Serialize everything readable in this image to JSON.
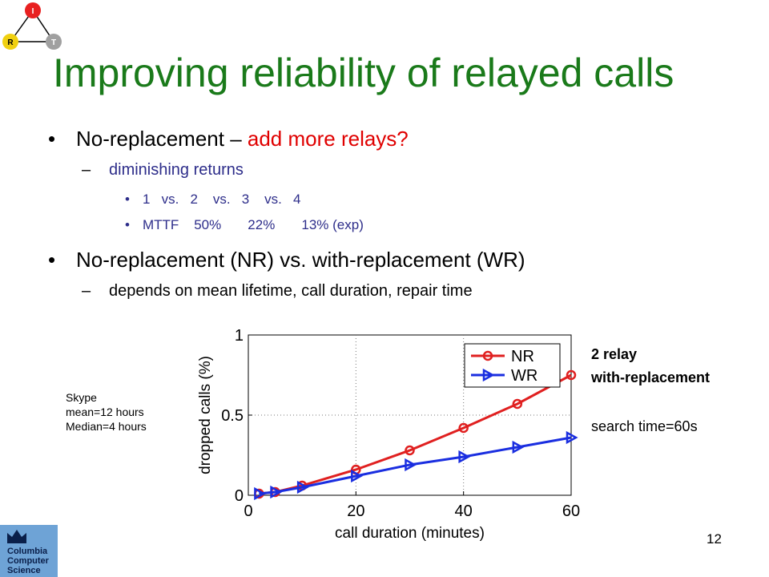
{
  "logo": {
    "letters": [
      "I",
      "R",
      "T"
    ],
    "colors": [
      "#e82020",
      "#f0d010",
      "#a0a0a0"
    ]
  },
  "title": "Improving reliability of relayed calls",
  "bullets": {
    "b1": {
      "prefix": "No-replacement – ",
      "highlight": "add more relays?"
    },
    "b1_sub": "diminishing returns",
    "b1_subsub": [
      "1   vs.   2    vs.   3    vs.   4",
      "MTTF    50%       22%       13% (exp)"
    ],
    "b2": "No-replacement (NR) vs. with-replacement (WR)",
    "b2_sub": "depends on mean lifetime, call duration, repair time"
  },
  "skype_note": [
    "Skype",
    "mean=12 hours",
    "Median=4 hours"
  ],
  "side_note": {
    "line1": "2 relay",
    "line2": "with-replacement",
    "line3": "search time=60s"
  },
  "page_number": "12",
  "cu_logo": [
    "Columbia",
    "Computer",
    "Science"
  ],
  "chart_data": {
    "type": "line",
    "xlabel": "call duration (minutes)",
    "ylabel": "dropped calls (%)",
    "xlim": [
      0,
      60
    ],
    "ylim": [
      0,
      1
    ],
    "xticks": [
      0,
      20,
      40,
      60
    ],
    "yticks": [
      0,
      0.5,
      1
    ],
    "ytick_labels": [
      "0",
      "0.5",
      "1"
    ],
    "grid": true,
    "legend_position": "top-right",
    "series": [
      {
        "name": "NR",
        "color": "#e02020",
        "marker": "circle",
        "x": [
          2,
          5,
          10,
          20,
          30,
          40,
          50,
          60
        ],
        "y": [
          0.01,
          0.02,
          0.06,
          0.16,
          0.28,
          0.42,
          0.57,
          0.75
        ]
      },
      {
        "name": "WR",
        "color": "#1a2ee0",
        "marker": "triangle-right",
        "x": [
          2,
          5,
          10,
          20,
          30,
          40,
          50,
          60
        ],
        "y": [
          0.01,
          0.02,
          0.05,
          0.12,
          0.19,
          0.24,
          0.3,
          0.36
        ]
      }
    ]
  }
}
